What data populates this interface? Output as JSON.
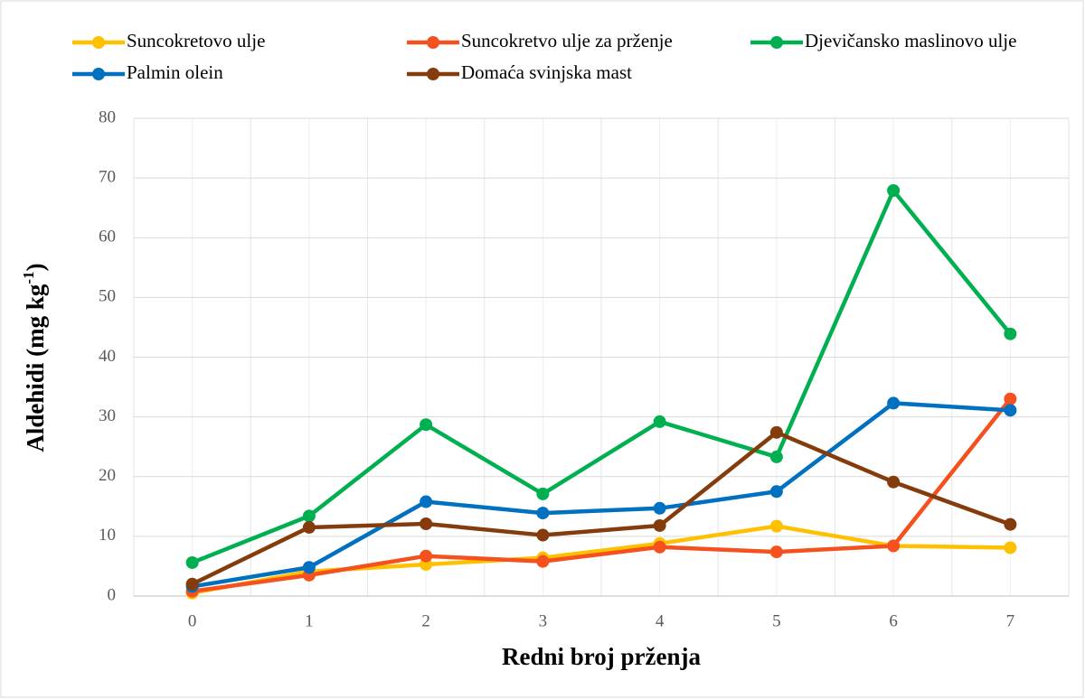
{
  "chart_data": {
    "type": "line",
    "x_label": "Redni broj prženja",
    "y_label": {
      "text": "Aldehidi (mg kg",
      "superscript": "-1",
      "suffix": ")"
    },
    "categories": [
      "0",
      "1",
      "2",
      "3",
      "4",
      "5",
      "6",
      "7"
    ],
    "series": [
      {
        "name": "Suncokretovo ulje",
        "color": "#ffc000",
        "values": [
          0.5,
          4.1,
          5.3,
          6.4,
          8.8,
          11.7,
          8.4,
          8.1
        ]
      },
      {
        "name": "Suncokretvo ulje za prženje",
        "color": "#f4511e",
        "values": [
          0.8,
          3.5,
          6.7,
          5.8,
          8.2,
          7.4,
          8.4,
          33.0
        ]
      },
      {
        "name": "Djevičansko maslinovo ulje",
        "color": "#00b050",
        "values": [
          5.6,
          13.4,
          28.7,
          17.1,
          29.2,
          23.3,
          67.9,
          43.9
        ]
      },
      {
        "name": "Palmin olein",
        "color": "#0070c0",
        "values": [
          1.6,
          4.8,
          15.8,
          13.9,
          14.7,
          17.5,
          32.3,
          31.1
        ]
      },
      {
        "name": "Domaća svinjska mast",
        "color": "#843c0c",
        "values": [
          2.0,
          11.5,
          12.1,
          10.2,
          11.8,
          27.4,
          19.1,
          12.0
        ]
      }
    ],
    "ylim": [
      0,
      80
    ],
    "yticks": [
      0,
      10,
      20,
      30,
      40,
      50,
      60,
      70,
      80
    ],
    "grid": true,
    "legend": "top"
  }
}
